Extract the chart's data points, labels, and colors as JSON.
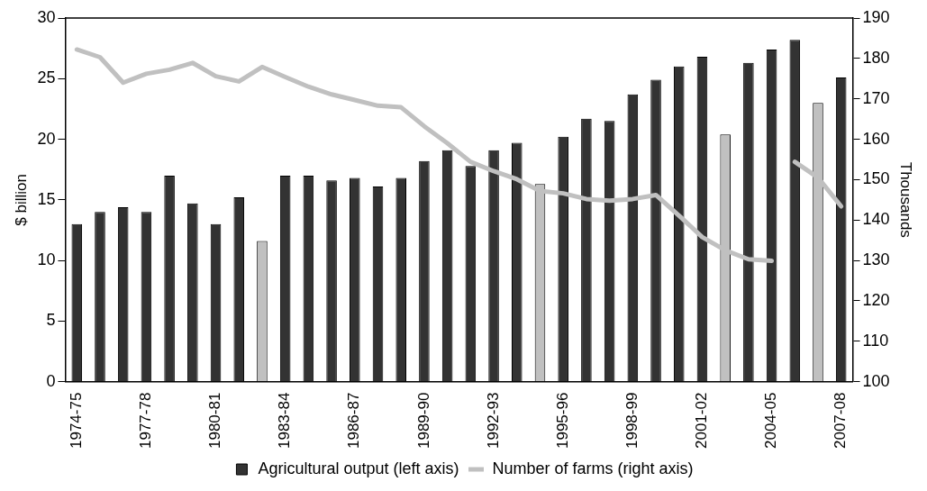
{
  "chart_data": {
    "type": "bar",
    "categories": [
      "1974-75",
      null,
      null,
      "1977-78",
      null,
      null,
      "1980-81",
      null,
      null,
      "1983-84",
      null,
      null,
      "1986-87",
      null,
      null,
      "1989-90",
      null,
      null,
      "1992-93",
      null,
      null,
      "1995-96",
      null,
      null,
      "1998-99",
      null,
      null,
      "2001-02",
      null,
      null,
      "2004-05",
      null,
      null,
      "2007-08"
    ],
    "series": [
      {
        "name": "Agricultural output (left axis)",
        "color": "#333333",
        "colors": [
          "#333333",
          "#333333",
          "#333333",
          "#333333",
          "#333333",
          "#333333",
          "#333333",
          "#333333",
          "#c0c0c0",
          "#333333",
          "#333333",
          "#333333",
          "#333333",
          "#333333",
          "#333333",
          "#333333",
          "#333333",
          "#333333",
          "#333333",
          "#333333",
          "#c0c0c0",
          "#333333",
          "#333333",
          "#333333",
          "#333333",
          "#333333",
          "#333333",
          "#333333",
          "#c0c0c0",
          "#333333",
          "#333333",
          "#333333",
          "#c0c0c0",
          "#333333"
        ],
        "values": [
          13.0,
          14.0,
          14.4,
          14.0,
          17.0,
          14.7,
          13.0,
          15.2,
          11.6,
          17.0,
          17.0,
          16.6,
          16.8,
          16.1,
          16.8,
          18.2,
          19.1,
          17.8,
          19.1,
          19.7,
          16.3,
          20.2,
          21.7,
          21.5,
          23.7,
          24.9,
          26.0,
          26.8,
          20.4,
          26.3,
          27.4,
          28.2,
          23.0,
          25.1
        ]
      },
      {
        "name": "Number of farms (right axis)",
        "type": "line",
        "axis": "y2",
        "color": "#c0c0c0",
        "values": [
          182.2,
          180.3,
          174.0,
          176.2,
          177.2,
          178.9,
          175.6,
          174.3,
          177.9,
          175.4,
          173.0,
          171.1,
          169.7,
          168.3,
          167.9,
          163.2,
          159.0,
          154.4,
          152.1,
          150.1,
          147.2,
          146.6,
          145.2,
          144.8,
          145.2,
          146.2,
          141.1,
          135.8,
          132.5,
          130.3,
          129.9,
          null,
          null,
          null
        ]
      },
      {
        "type": "line",
        "axis": "y2",
        "color": "#c0c0c0",
        "values": [
          null,
          null,
          null,
          null,
          null,
          null,
          null,
          null,
          null,
          null,
          null,
          null,
          null,
          null,
          null,
          null,
          null,
          null,
          null,
          null,
          null,
          null,
          null,
          null,
          null,
          null,
          null,
          null,
          null,
          null,
          null,
          154.4,
          150.5,
          143.4
        ]
      }
    ],
    "ylabel": "$ billion",
    "y2label": "Thousands",
    "ylim": [
      0,
      30
    ],
    "yticks": [
      0,
      5,
      10,
      15,
      20,
      25,
      30
    ],
    "y2lim": [
      100,
      190
    ],
    "y2ticks": [
      100,
      110,
      120,
      130,
      140,
      150,
      160,
      170,
      180,
      190
    ],
    "grid": false,
    "legend": "bottom",
    "marker": "none"
  }
}
